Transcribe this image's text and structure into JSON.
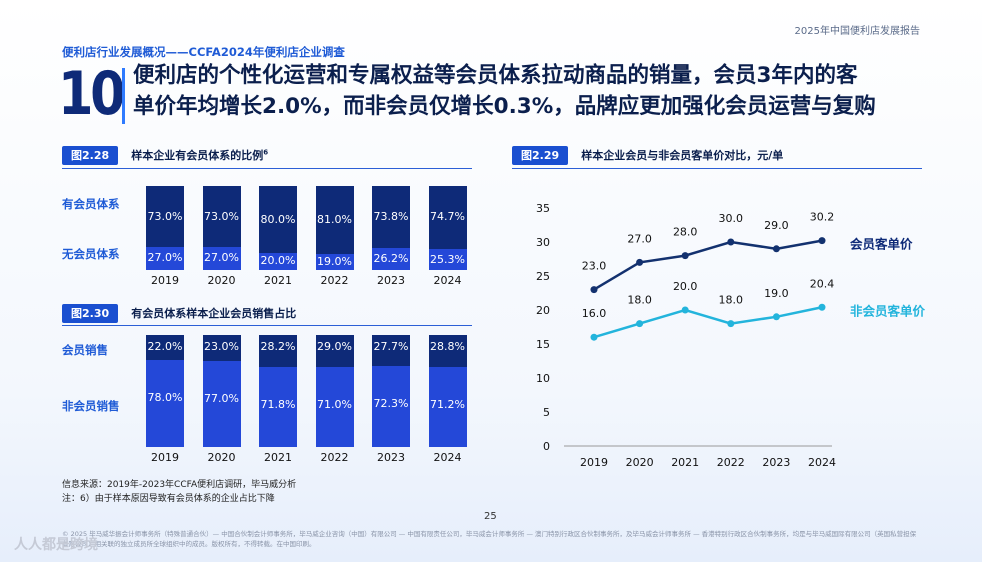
{
  "header": {
    "report_name": "2025年中国便利店发展报告",
    "section": "便利店行业发展概况——CCFA2024年便利店企业调查",
    "number": "10",
    "headline_line1": "便利店的个性化运营和专属权益等会员体系拉动商品的销量，会员3年内的客",
    "headline_line2": "单价年均增长2.0%，而非会员仅增长0.3%，品牌应更加强化会员运营与复购"
  },
  "colors": {
    "dark": "#0e2a78",
    "mid": "#2448d8",
    "line_member": "#13316f",
    "line_nonmember": "#23b4dc"
  },
  "chart_data": [
    {
      "id": "fig228",
      "type": "bar",
      "tag": "图2.28",
      "title": "样本企业有会员体系的比例",
      "title_sup": "6",
      "row_labels": [
        "有会员体系",
        "无会员体系"
      ],
      "categories": [
        "2019",
        "2020",
        "2021",
        "2022",
        "2023",
        "2024"
      ],
      "series": [
        {
          "name": "有会员体系",
          "values": [
            73.0,
            73.0,
            80.0,
            81.0,
            73.8,
            74.7
          ],
          "labels": [
            "73.0%",
            "73.0%",
            "80.0%",
            "81.0%",
            "73.8%",
            "74.7%"
          ]
        },
        {
          "name": "无会员体系",
          "values": [
            27.0,
            27.0,
            20.0,
            19.0,
            26.2,
            25.3
          ],
          "labels": [
            "27.0%",
            "27.0%",
            "20.0%",
            "19.0%",
            "26.2%",
            "25.3%"
          ]
        }
      ],
      "ylim": [
        0,
        100
      ]
    },
    {
      "id": "fig230",
      "type": "bar",
      "tag": "图2.30",
      "title": "有会员体系样本企业会员销售占比",
      "row_labels": [
        "会员销售",
        "非会员销售"
      ],
      "categories": [
        "2019",
        "2020",
        "2021",
        "2022",
        "2023",
        "2024"
      ],
      "series": [
        {
          "name": "会员销售",
          "values": [
            22.0,
            23.0,
            28.2,
            29.0,
            27.7,
            28.8
          ],
          "labels": [
            "22.0%",
            "23.0%",
            "28.2%",
            "29.0%",
            "27.7%",
            "28.8%"
          ]
        },
        {
          "name": "非会员销售",
          "values": [
            78.0,
            77.0,
            71.8,
            71.0,
            72.3,
            71.2
          ],
          "labels": [
            "78.0%",
            "77.0%",
            "71.8%",
            "71.0%",
            "72.3%",
            "71.2%"
          ]
        }
      ],
      "ylim": [
        0,
        100
      ]
    },
    {
      "id": "fig229",
      "type": "line",
      "tag": "图2.29",
      "title": "样本企业会员与非会员客单价对比，元/单",
      "x": [
        "2019",
        "2020",
        "2021",
        "2022",
        "2023",
        "2024"
      ],
      "series": [
        {
          "name": "会员客单价",
          "values": [
            23.0,
            27.0,
            28.0,
            30.0,
            29.0,
            30.2
          ],
          "labels": [
            "23.0",
            "27.0",
            "28.0",
            "30.0",
            "29.0",
            "30.2"
          ]
        },
        {
          "name": "非会员客单价",
          "values": [
            16.0,
            18.0,
            20.0,
            18.0,
            19.0,
            20.4
          ],
          "labels": [
            "16.0",
            "18.0",
            "20.0",
            "18.0",
            "19.0",
            "20.4"
          ]
        }
      ],
      "ylim": [
        0,
        35
      ],
      "yticks": [
        "0",
        "5",
        "10",
        "15",
        "20",
        "25",
        "30",
        "35"
      ],
      "grid": false
    }
  ],
  "footer": {
    "source": "信息来源：2019年-2023年CCFA便利店调研，毕马威分析",
    "note": "注：6）由于样本原因导致有会员体系的企业占比下降",
    "page": "25",
    "legal": "© 2025 毕马威华振会计师事务所（特殊普通合伙）— 中国合伙制会计师事务所，毕马威企业咨询（中国）有限公司 — 中国有限责任公司，毕马威会计师事务所 — 澳门特别行政区合伙制事务所，及毕马威会计师事务所 — 香港特别行政区合伙制事务所，均是与毕马威国际有限公司（英国私营担保有限公司）相关联的独立成员所全球组织中的成员。版权所有，不得转载。在中国印刷。",
    "watermark": "人人都是跨境"
  }
}
